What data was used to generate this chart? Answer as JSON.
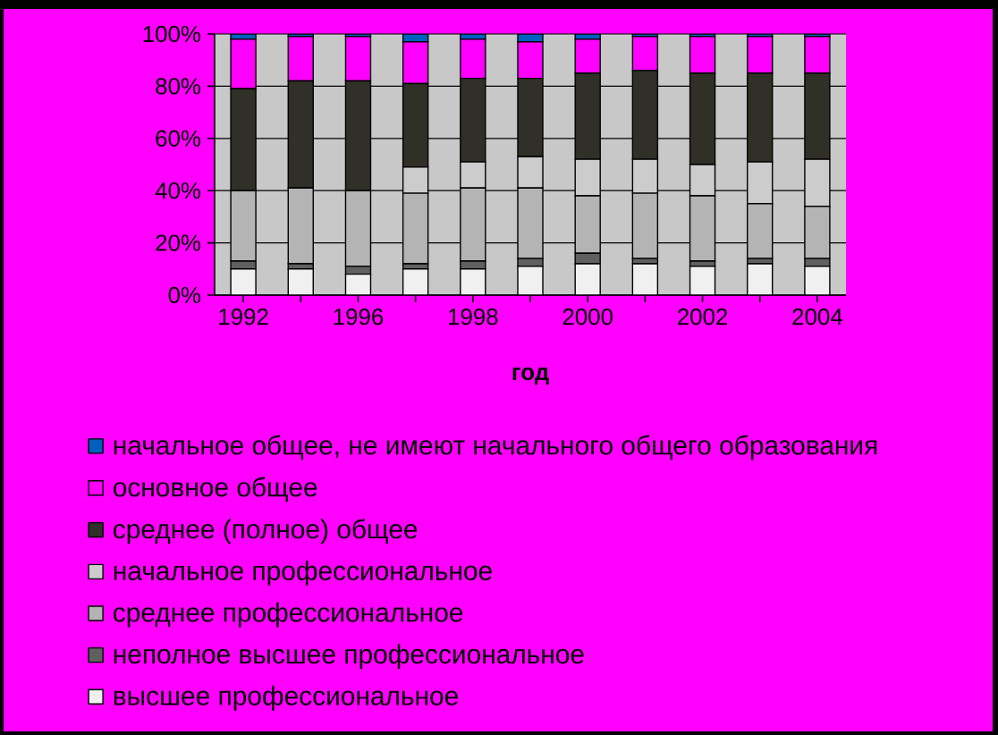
{
  "chart_data": {
    "type": "bar",
    "stacked": true,
    "xlabel": "год",
    "categories": [
      "1992",
      null,
      "1996",
      null,
      "1998",
      null,
      "2000",
      null,
      "2002",
      null,
      "2004"
    ],
    "ylim": [
      0,
      100
    ],
    "yticks": [
      {
        "value": 0,
        "label": "0%"
      },
      {
        "value": 20,
        "label": "20%"
      },
      {
        "value": 40,
        "label": "40%"
      },
      {
        "value": 60,
        "label": "60%"
      },
      {
        "value": 80,
        "label": "80%"
      },
      {
        "value": 100,
        "label": "100%"
      }
    ],
    "grid": "y",
    "legend": "bottom",
    "series": [
      {
        "name": "высшее профессиональное",
        "color": "#f0f0f0",
        "values": [
          10,
          10,
          8,
          10,
          10,
          11,
          12,
          12,
          11,
          12,
          11
        ]
      },
      {
        "name": "неполное высшее профессиональное",
        "color": "#606060",
        "values": [
          3,
          2,
          3,
          2,
          3,
          3,
          4,
          2,
          2,
          2,
          3
        ]
      },
      {
        "name": "среднее профессиональное",
        "color": "#b4b4b4",
        "values": [
          27,
          29,
          29,
          27,
          28,
          27,
          22,
          25,
          25,
          21,
          20
        ]
      },
      {
        "name": "начальное профессиональное",
        "color": "#cccccc",
        "values": [
          0,
          0,
          0,
          10,
          10,
          12,
          14,
          13,
          12,
          16,
          18
        ]
      },
      {
        "name": "среднее (полное) общее",
        "color": "#303028",
        "values": [
          39,
          41,
          42,
          32,
          32,
          30,
          33,
          34,
          35,
          34,
          33
        ]
      },
      {
        "name": "основное общее",
        "color": "#ff00ff",
        "values": [
          19,
          17,
          17,
          16,
          15,
          14,
          13,
          13,
          14,
          14,
          14
        ]
      },
      {
        "name": "начальное общее, не имеют начального общего образования",
        "color": "#0060c0",
        "values": [
          2,
          1,
          1,
          3,
          2,
          3,
          2,
          1,
          1,
          1,
          1
        ]
      }
    ]
  }
}
